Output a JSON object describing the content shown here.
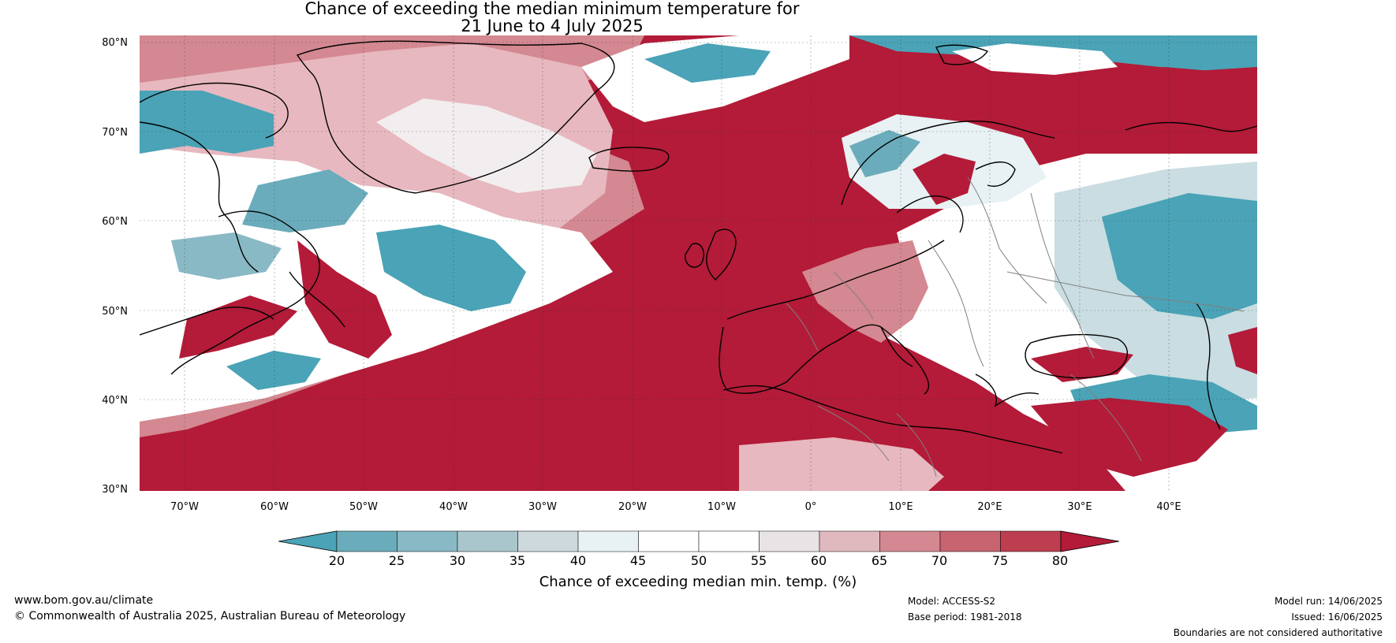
{
  "title": {
    "line1": "Chance of exceeding the median minimum temperature for",
    "line2": "21 June to 4 July 2025"
  },
  "map": {
    "lat_labels": [
      "80°N",
      "70°N",
      "60°N",
      "50°N",
      "40°N",
      "30°N"
    ],
    "lon_labels": [
      "70°W",
      "60°W",
      "50°W",
      "40°W",
      "30°W",
      "20°W",
      "10°W",
      "0°",
      "10°E",
      "20°E",
      "30°E",
      "40°E"
    ],
    "colors": {
      "high": "#b31b38",
      "mid_high": "#cf6a78",
      "light_pink": "#e7b8bf",
      "neutral": "#ffffff",
      "light_blue": "#c9dde2",
      "low": "#4aa3b6",
      "land_outline": "#000000",
      "border": "#808080"
    }
  },
  "colorbar": {
    "label": "Chance of exceeding median min. temp. (%)",
    "ticks": [
      "20",
      "25",
      "30",
      "35",
      "40",
      "45",
      "50",
      "55",
      "60",
      "65",
      "70",
      "75",
      "80"
    ],
    "colors": [
      "#4aa3b6",
      "#6aacbb",
      "#89b9c5",
      "#a9c6cd",
      "#cdd9dc",
      "#e8f1f3",
      "#ffffff",
      "#ffffff",
      "#e8e4e5",
      "#e0b9bf",
      "#d48891",
      "#c7646f",
      "#bd3f4f",
      "#b31b38"
    ]
  },
  "footer": {
    "website": "www.bom.gov.au/climate",
    "copyright": "© Commonwealth of Australia 2025, Australian Bureau of Meteorology",
    "model": "Model: ACCESS-S2",
    "base_period": "Base period: 1981-2018",
    "model_run": "Model run: 14/06/2025",
    "issued": "Issued: 16/06/2025",
    "disclaimer": "Boundaries are not considered authoritative"
  }
}
